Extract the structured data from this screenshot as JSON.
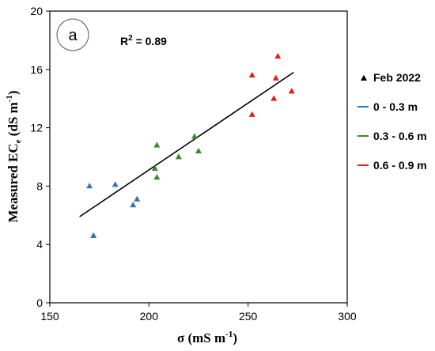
{
  "chart_data": {
    "type": "scatter",
    "panel_label": "a",
    "annotation": {
      "r2_prefix": "R",
      "r2_sup": "2",
      "r2_suffix": " = 0.89"
    },
    "xlabel": {
      "main": "σ (mS m",
      "sup": "-1",
      "tail": ")"
    },
    "ylabel": {
      "main": "Measured EC",
      "sub": "e",
      "mid": " (dS m",
      "sup": "-1",
      "tail": ")"
    },
    "xlim": [
      150,
      300
    ],
    "ylim": [
      0,
      20
    ],
    "xticks": [
      150,
      200,
      250,
      300
    ],
    "yticks": [
      0,
      4,
      8,
      12,
      16,
      20
    ],
    "grid": false,
    "legend_position": "right",
    "legend": [
      {
        "label": "Feb 2022",
        "marker": "triangle",
        "color": "#000000"
      },
      {
        "label": "0 - 0.3 m",
        "marker": "line",
        "color": "#2E75B6"
      },
      {
        "label": "0.3 - 0.6 m",
        "marker": "line",
        "color": "#3A8A2A"
      },
      {
        "label": "0.6 - 0.9 m",
        "marker": "line",
        "color": "#E02020"
      }
    ],
    "series": [
      {
        "name": "0 - 0.3 m",
        "color": "#2E75B6",
        "x": [
          170,
          172,
          183,
          192,
          194
        ],
        "y": [
          8.0,
          4.6,
          8.1,
          6.7,
          7.1
        ]
      },
      {
        "name": "0.3 - 0.6 m",
        "color": "#3A8A2A",
        "x": [
          203,
          204,
          204,
          215,
          223,
          225
        ],
        "y": [
          9.2,
          10.8,
          8.6,
          10.0,
          11.4,
          10.4
        ]
      },
      {
        "name": "0.6 - 0.9 m",
        "color": "#E02020",
        "x": [
          252,
          252,
          263,
          264,
          265,
          272
        ],
        "y": [
          15.6,
          12.9,
          14.0,
          15.4,
          16.9,
          14.5
        ]
      }
    ],
    "fit_line": {
      "color": "#000000",
      "x": [
        165,
        273
      ],
      "y": [
        5.9,
        15.8
      ]
    }
  }
}
